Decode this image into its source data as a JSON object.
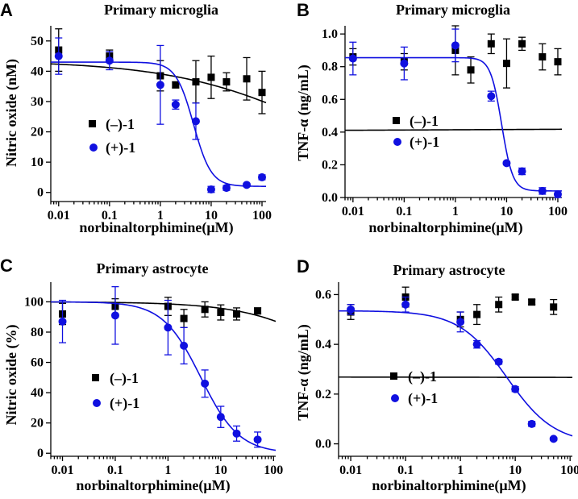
{
  "colors": {
    "black_series": "#000000",
    "blue_series": "#1010e0"
  },
  "chart_data": [
    {
      "id": "A",
      "panel_letter": "A",
      "type": "scatter",
      "title": "Primary microglia",
      "xlabel": "norbinaltorphimine(μM)",
      "ylabel": "Nitric oxide (nM)",
      "xscale": "log",
      "xlim": [
        0.007,
        120
      ],
      "ylim": [
        -3,
        55
      ],
      "xticks": [
        0.01,
        0.1,
        1,
        10,
        100
      ],
      "xtick_labels": [
        "0.01",
        "0.1",
        "1",
        "10",
        "100"
      ],
      "yticks": [
        0,
        10,
        20,
        30,
        40,
        50
      ],
      "ytick_labels": [
        "0",
        "10",
        "20",
        "30",
        "40",
        "50"
      ],
      "legend_position": "middle-left",
      "series": [
        {
          "name": "(–)-1",
          "color": "#000000",
          "marker": "square",
          "x": [
            0.01,
            0.1,
            1,
            2,
            5,
            10,
            20,
            50,
            100
          ],
          "y": [
            47,
            45,
            38.5,
            35.5,
            36.5,
            38,
            36.5,
            37.5,
            33
          ],
          "err": [
            7,
            2,
            5,
            1,
            7,
            7,
            3,
            7,
            7
          ],
          "fit": {
            "top": 43.5,
            "bottom": 0,
            "ec50": 1500,
            "hill": 0.3
          }
        },
        {
          "name": "(+)-1",
          "color": "#1010e0",
          "marker": "circle",
          "x": [
            0.01,
            0.1,
            1,
            2,
            5,
            10,
            20,
            50,
            100
          ],
          "y": [
            45,
            43.5,
            35.5,
            29,
            23.5,
            1,
            1.5,
            2.5,
            5
          ],
          "err": [
            6,
            3,
            13,
            1.5,
            6,
            1,
            0.8,
            0.5,
            0.8
          ],
          "fit": {
            "top": 43,
            "bottom": 2,
            "ec50": 4.5,
            "hill": 2.5
          }
        }
      ]
    },
    {
      "id": "B",
      "panel_letter": "B",
      "type": "scatter",
      "title": "Primary microglia",
      "xlabel": "norbinaltorphimine(μM)",
      "ylabel": "TNF-α (ng/mL)",
      "xscale": "log",
      "xlim": [
        0.007,
        120
      ],
      "ylim": [
        0,
        1.05
      ],
      "xticks": [
        0.01,
        0.1,
        1,
        10,
        100
      ],
      "xtick_labels": [
        "0.01",
        "0.1",
        "1",
        "10",
        "100"
      ],
      "yticks": [
        0,
        0.2,
        0.4,
        0.6,
        0.8,
        1.0
      ],
      "ytick_labels": [
        "0.0",
        "0.2",
        "0.4",
        "0.6",
        "0.8",
        "1.0"
      ],
      "legend_position": "middle-right",
      "series": [
        {
          "name": "(–)-1",
          "color": "#000000",
          "marker": "square",
          "x": [
            0.01,
            0.1,
            1,
            2,
            5,
            10,
            20,
            50,
            100
          ],
          "y": [
            0.86,
            0.83,
            0.9,
            0.78,
            0.94,
            0.82,
            0.94,
            0.86,
            0.83
          ],
          "err": [
            0.05,
            0.05,
            0.15,
            0.08,
            0.06,
            0.15,
            0.04,
            0.08,
            0.08
          ],
          "fit": {
            "top": 0.855,
            "bottom": 0.0,
            "ec50": 1000000000.0,
            "hill": -0.003
          }
        },
        {
          "name": "(+)-1",
          "color": "#1010e0",
          "marker": "circle",
          "x": [
            0.01,
            0.1,
            1,
            5,
            10,
            20,
            50,
            100
          ],
          "y": [
            0.85,
            0.82,
            0.93,
            0.62,
            0.21,
            0.16,
            0.04,
            0.02
          ],
          "err": [
            0.1,
            0.1,
            0.1,
            0.03,
            0.01,
            0.02,
            0.02,
            0.02
          ],
          "fit": {
            "top": 0.855,
            "bottom": 0.04,
            "ec50": 8.0,
            "hill": 4.0
          }
        }
      ]
    },
    {
      "id": "C",
      "panel_letter": "C",
      "type": "scatter",
      "title": "Primary astrocyte",
      "xlabel": "norbinaltorphimine(μM)",
      "ylabel": "Nitric oxide (%)",
      "xscale": "log",
      "xlim": [
        0.006,
        110
      ],
      "ylim": [
        -2,
        113
      ],
      "xticks": [
        0.01,
        0.1,
        1,
        10,
        100
      ],
      "xtick_labels": [
        "0.01",
        "0.1",
        "1",
        "10",
        "100"
      ],
      "yticks": [
        0,
        20,
        40,
        60,
        80,
        100
      ],
      "ytick_labels": [
        "0",
        "20",
        "40",
        "60",
        "80",
        "100"
      ],
      "legend_position": "lower-left",
      "series": [
        {
          "name": "(–)-1",
          "color": "#000000",
          "marker": "square",
          "x": [
            0.01,
            0.1,
            1,
            2,
            5,
            10,
            20,
            50
          ],
          "y": [
            92,
            97,
            97,
            89,
            95,
            93,
            92,
            94
          ],
          "err": [
            7,
            5,
            6,
            6,
            5,
            5,
            4,
            2
          ],
          "fit": {
            "top": 100,
            "bottom": 0,
            "ec50": 5000,
            "hill": 0.5
          }
        },
        {
          "name": "(+)-1",
          "color": "#1010e0",
          "marker": "circle",
          "x": [
            0.01,
            0.1,
            1,
            2,
            5,
            10,
            20,
            50
          ],
          "y": [
            87,
            91,
            83,
            71,
            46,
            24,
            13,
            9
          ],
          "err": [
            14,
            19,
            18,
            12,
            9,
            7,
            5,
            5
          ],
          "fit": {
            "top": 100,
            "bottom": 0,
            "ec50": 4.2,
            "hill": 1.2
          }
        }
      ]
    },
    {
      "id": "D",
      "panel_letter": "D",
      "type": "scatter",
      "title": "Primary astrocyte",
      "xlabel": "norbinaltorphimine(μM)",
      "ylabel": "TNF-α (ng/mL)",
      "xscale": "log",
      "xlim": [
        0.006,
        110
      ],
      "ylim": [
        -0.05,
        0.65
      ],
      "xticks": [
        0.01,
        0.1,
        1,
        10,
        100
      ],
      "xtick_labels": [
        "0.01",
        "0.1",
        "1",
        "10",
        "100"
      ],
      "yticks": [
        0,
        0.2,
        0.4,
        0.6
      ],
      "ytick_labels": [
        "0.0",
        "0.2",
        "0.4",
        "0.6"
      ],
      "legend_position": "middle-left",
      "series": [
        {
          "name": "(–)-1",
          "color": "#000000",
          "marker": "square",
          "x": [
            0.01,
            0.1,
            1,
            2,
            5,
            10,
            20,
            50
          ],
          "y": [
            0.53,
            0.59,
            0.5,
            0.52,
            0.56,
            0.59,
            0.57,
            0.55
          ],
          "err": [
            0.03,
            0.04,
            0.03,
            0.04,
            0.03,
            0.01,
            0.01,
            0.03
          ],
          "fit": {
            "top": 0.53,
            "bottom": 0.0,
            "ec50": 1000000000.0,
            "hill": 0.001
          }
        },
        {
          "name": "(+)-1",
          "color": "#1010e0",
          "marker": "circle",
          "x": [
            0.01,
            0.1,
            1,
            2,
            5,
            10,
            20,
            50
          ],
          "y": [
            0.54,
            0.56,
            0.49,
            0.4,
            0.33,
            0.22,
            0.08,
            0.02
          ],
          "err": [
            0.02,
            0.03,
            0.04,
            0.015,
            0.01,
            0.01,
            0.01,
            0.005
          ],
          "fit": {
            "top": 0.535,
            "bottom": 0.0,
            "ec50": 7.0,
            "hill": 1.0
          }
        }
      ]
    }
  ]
}
